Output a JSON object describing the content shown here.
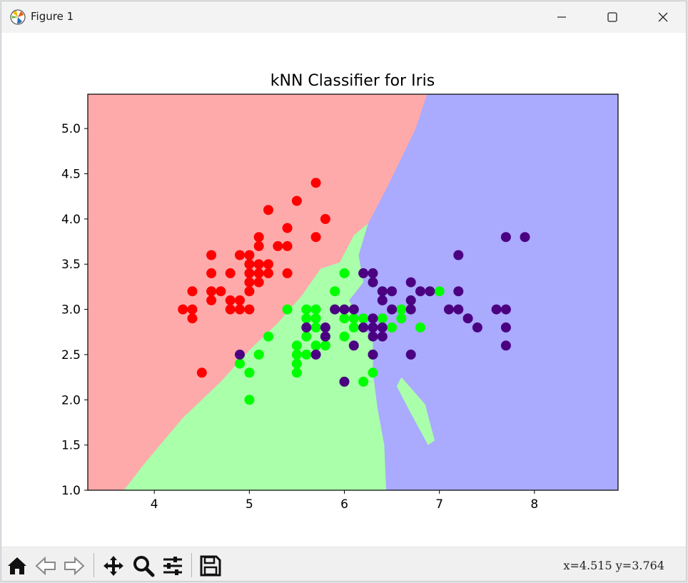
{
  "window": {
    "title": "Figure 1",
    "controls": [
      "minimize-icon",
      "maximize-icon",
      "close-icon"
    ]
  },
  "toolbar": {
    "tools": [
      "home-icon",
      "back-arrow-icon",
      "forward-arrow-icon",
      "pan-icon",
      "zoom-icon",
      "configure-subplots-icon",
      "save-icon"
    ],
    "coords_text": "x=4.515  y=3.764"
  },
  "colors": {
    "region_setosa": "#FFAAAA",
    "region_versicolor": "#AAFFAA",
    "region_virginica": "#AAAAFF",
    "point_setosa": "#FF0000",
    "point_versicolor": "#00FF00",
    "point_virginica": "#4B0082"
  },
  "chart_data": {
    "type": "scatter",
    "title": "kNN Classifier for Iris",
    "xlabel": "",
    "ylabel": "",
    "xlim": [
      3.3,
      8.88
    ],
    "ylim": [
      1.0,
      5.38
    ],
    "x_ticks": [
      4,
      5,
      6,
      7,
      8
    ],
    "y_ticks": [
      1.0,
      1.5,
      2.0,
      2.5,
      3.0,
      3.5,
      4.0,
      4.5,
      5.0
    ],
    "grid": false,
    "legend": "none",
    "decision_regions": {
      "setosa_versicolor_boundary": [
        [
          3.68,
          1.0
        ],
        [
          3.9,
          1.3
        ],
        [
          4.3,
          1.8
        ],
        [
          4.7,
          2.2
        ],
        [
          5.0,
          2.55
        ],
        [
          5.3,
          2.85
        ],
        [
          5.55,
          3.15
        ],
        [
          5.75,
          3.45
        ],
        [
          5.95,
          3.52
        ],
        [
          6.1,
          3.82
        ],
        [
          6.25,
          3.95
        ]
      ],
      "setosa_virginica_boundary": [
        [
          6.25,
          3.95
        ],
        [
          6.45,
          4.35
        ],
        [
          6.75,
          5.0
        ],
        [
          6.87,
          5.38
        ]
      ],
      "versicolor_virginica_boundary": [
        [
          6.25,
          3.95
        ],
        [
          6.15,
          3.6
        ],
        [
          6.2,
          3.3
        ],
        [
          6.05,
          3.1
        ],
        [
          6.15,
          2.9
        ],
        [
          6.3,
          2.65
        ],
        [
          6.3,
          2.3
        ],
        [
          6.35,
          1.9
        ],
        [
          6.42,
          1.5
        ],
        [
          6.44,
          1.0
        ]
      ],
      "versicolor_island": [
        [
          6.6,
          2.25
        ],
        [
          6.85,
          1.95
        ],
        [
          6.95,
          1.55
        ],
        [
          6.88,
          1.5
        ],
        [
          6.7,
          1.85
        ],
        [
          6.55,
          2.15
        ]
      ]
    },
    "series": [
      {
        "class": "setosa",
        "points": [
          [
            4.3,
            3.0
          ],
          [
            4.4,
            2.9
          ],
          [
            4.4,
            3.0
          ],
          [
            4.4,
            3.2
          ],
          [
            4.5,
            2.3
          ],
          [
            4.6,
            3.1
          ],
          [
            4.6,
            3.2
          ],
          [
            4.6,
            3.4
          ],
          [
            4.6,
            3.6
          ],
          [
            4.7,
            3.2
          ],
          [
            4.8,
            3.0
          ],
          [
            4.8,
            3.1
          ],
          [
            4.8,
            3.4
          ],
          [
            4.9,
            3.0
          ],
          [
            4.9,
            3.1
          ],
          [
            4.9,
            3.6
          ],
          [
            5.0,
            3.0
          ],
          [
            5.0,
            3.2
          ],
          [
            5.0,
            3.3
          ],
          [
            5.0,
            3.4
          ],
          [
            5.0,
            3.5
          ],
          [
            5.0,
            3.6
          ],
          [
            5.1,
            3.3
          ],
          [
            5.1,
            3.4
          ],
          [
            5.1,
            3.5
          ],
          [
            5.1,
            3.7
          ],
          [
            5.1,
            3.8
          ],
          [
            5.2,
            3.4
          ],
          [
            5.2,
            3.5
          ],
          [
            5.2,
            4.1
          ],
          [
            5.3,
            3.7
          ],
          [
            5.4,
            3.4
          ],
          [
            5.4,
            3.7
          ],
          [
            5.4,
            3.9
          ],
          [
            5.5,
            4.2
          ],
          [
            5.7,
            3.8
          ],
          [
            5.7,
            4.4
          ],
          [
            5.8,
            4.0
          ]
        ]
      },
      {
        "class": "versicolor",
        "points": [
          [
            4.9,
            2.4
          ],
          [
            5.0,
            2.0
          ],
          [
            5.0,
            2.3
          ],
          [
            5.1,
            2.5
          ],
          [
            5.2,
            2.7
          ],
          [
            5.4,
            3.0
          ],
          [
            5.5,
            2.3
          ],
          [
            5.5,
            2.4
          ],
          [
            5.5,
            2.5
          ],
          [
            5.5,
            2.6
          ],
          [
            5.6,
            2.5
          ],
          [
            5.6,
            2.7
          ],
          [
            5.6,
            2.9
          ],
          [
            5.6,
            3.0
          ],
          [
            5.7,
            2.6
          ],
          [
            5.7,
            2.8
          ],
          [
            5.7,
            2.9
          ],
          [
            5.7,
            3.0
          ],
          [
            5.8,
            2.6
          ],
          [
            5.8,
            2.7
          ],
          [
            5.9,
            3.0
          ],
          [
            5.9,
            3.2
          ],
          [
            6.0,
            2.2
          ],
          [
            6.0,
            2.7
          ],
          [
            6.0,
            2.9
          ],
          [
            6.0,
            3.4
          ],
          [
            6.1,
            2.8
          ],
          [
            6.1,
            2.9
          ],
          [
            6.1,
            3.0
          ],
          [
            6.2,
            2.2
          ],
          [
            6.2,
            2.9
          ],
          [
            6.3,
            2.3
          ],
          [
            6.3,
            2.5
          ],
          [
            6.3,
            3.3
          ],
          [
            6.4,
            2.9
          ],
          [
            6.4,
            3.2
          ],
          [
            6.5,
            2.8
          ],
          [
            6.6,
            2.9
          ],
          [
            6.6,
            3.0
          ],
          [
            6.7,
            3.0
          ],
          [
            6.7,
            3.1
          ],
          [
            6.8,
            2.8
          ],
          [
            7.0,
            3.2
          ]
        ]
      },
      {
        "class": "virginica",
        "points": [
          [
            4.9,
            2.5
          ],
          [
            5.6,
            2.8
          ],
          [
            5.7,
            2.5
          ],
          [
            5.8,
            2.7
          ],
          [
            5.8,
            2.8
          ],
          [
            5.9,
            3.0
          ],
          [
            6.0,
            2.2
          ],
          [
            6.0,
            3.0
          ],
          [
            6.1,
            2.6
          ],
          [
            6.1,
            3.0
          ],
          [
            6.2,
            2.8
          ],
          [
            6.2,
            3.4
          ],
          [
            6.3,
            2.5
          ],
          [
            6.3,
            2.7
          ],
          [
            6.3,
            2.8
          ],
          [
            6.3,
            2.9
          ],
          [
            6.3,
            3.3
          ],
          [
            6.3,
            3.4
          ],
          [
            6.4,
            2.7
          ],
          [
            6.4,
            2.8
          ],
          [
            6.4,
            3.1
          ],
          [
            6.4,
            3.2
          ],
          [
            6.5,
            3.0
          ],
          [
            6.5,
            3.2
          ],
          [
            6.7,
            2.5
          ],
          [
            6.7,
            3.0
          ],
          [
            6.7,
            3.1
          ],
          [
            6.7,
            3.3
          ],
          [
            6.8,
            3.2
          ],
          [
            6.9,
            3.2
          ],
          [
            7.1,
            3.0
          ],
          [
            7.2,
            3.0
          ],
          [
            7.2,
            3.2
          ],
          [
            7.2,
            3.6
          ],
          [
            7.3,
            2.9
          ],
          [
            7.4,
            2.8
          ],
          [
            7.6,
            3.0
          ],
          [
            7.7,
            2.6
          ],
          [
            7.7,
            2.8
          ],
          [
            7.7,
            3.0
          ],
          [
            7.7,
            3.8
          ],
          [
            7.9,
            3.8
          ]
        ]
      }
    ]
  }
}
